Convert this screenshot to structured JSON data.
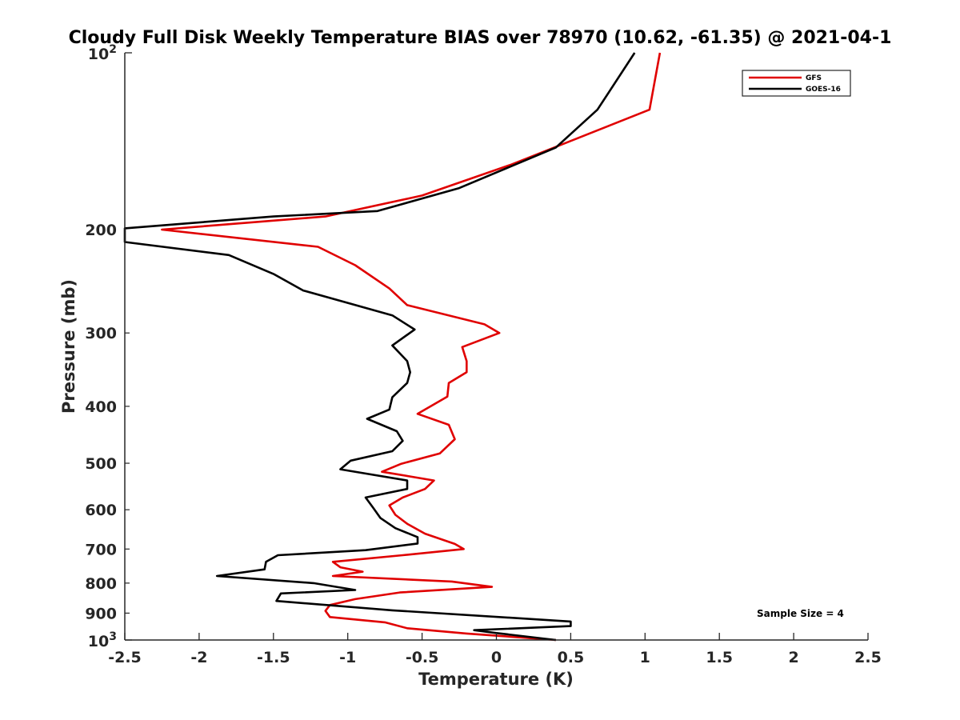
{
  "chart_data": {
    "type": "line",
    "title": "Cloudy Full Disk Weekly Temperature BIAS over 78970 (10.62, -61.35) @ 2021-04-1",
    "xlabel": "Temperature (K)",
    "ylabel": "Pressure (mb)",
    "xlim": [
      -2.5,
      2.5
    ],
    "ylim": [
      100,
      1000
    ],
    "y_scale": "log",
    "y_reversed": true,
    "x_ticks": [
      "-2.5",
      "-2",
      "-1.5",
      "-1",
      "-0.5",
      "0",
      "0.5",
      "1",
      "1.5",
      "2",
      "2.5"
    ],
    "y_ticks": [
      {
        "value": 100,
        "base": "10",
        "exp": "2"
      },
      {
        "value": 200,
        "label": "200"
      },
      {
        "value": 300,
        "label": "300"
      },
      {
        "value": 400,
        "label": "400"
      },
      {
        "value": 500,
        "label": "500"
      },
      {
        "value": 600,
        "label": "600"
      },
      {
        "value": 700,
        "label": "700"
      },
      {
        "value": 800,
        "label": "800"
      },
      {
        "value": 900,
        "label": "900"
      },
      {
        "value": 1000,
        "base": "10",
        "exp": "3"
      }
    ],
    "legend_position": "top-right",
    "annotation": "Sample Size = 4",
    "series": [
      {
        "name": "GFS",
        "color": "#e00000",
        "points": [
          [
            1.1,
            100
          ],
          [
            1.03,
            125
          ],
          [
            0.1,
            155
          ],
          [
            -0.5,
            175
          ],
          [
            -1.15,
            190
          ],
          [
            -2.25,
            200
          ],
          [
            -1.2,
            214
          ],
          [
            -0.95,
            230
          ],
          [
            -0.72,
            252
          ],
          [
            -0.6,
            269
          ],
          [
            -0.08,
            290
          ],
          [
            0.02,
            300
          ],
          [
            -0.23,
            317
          ],
          [
            -0.2,
            335
          ],
          [
            -0.2,
            350
          ],
          [
            -0.32,
            365
          ],
          [
            -0.33,
            385
          ],
          [
            -0.53,
            412
          ],
          [
            -0.32,
            430
          ],
          [
            -0.28,
            455
          ],
          [
            -0.38,
            481
          ],
          [
            -0.64,
            501
          ],
          [
            -0.77,
            517
          ],
          [
            -0.42,
            535
          ],
          [
            -0.48,
            553
          ],
          [
            -0.63,
            572
          ],
          [
            -0.72,
            590
          ],
          [
            -0.68,
            612
          ],
          [
            -0.6,
            634
          ],
          [
            -0.48,
            659
          ],
          [
            -0.28,
            686
          ],
          [
            -0.22,
            700
          ],
          [
            -0.63,
            717
          ],
          [
            -1.1,
            736
          ],
          [
            -1.05,
            752
          ],
          [
            -0.9,
            765
          ],
          [
            -1.1,
            778
          ],
          [
            -0.3,
            795
          ],
          [
            -0.03,
            812
          ],
          [
            -0.65,
            830
          ],
          [
            -0.95,
            852
          ],
          [
            -1.12,
            872
          ],
          [
            -1.15,
            892
          ],
          [
            -1.12,
            914
          ],
          [
            -0.75,
            933
          ],
          [
            -0.6,
            955
          ],
          [
            -0.2,
            975
          ],
          [
            0.4,
            1000
          ]
        ]
      },
      {
        "name": "GOES-16",
        "color": "#000000",
        "points": [
          [
            0.93,
            100
          ],
          [
            0.68,
            125
          ],
          [
            0.4,
            145
          ],
          [
            -0.25,
            170
          ],
          [
            -0.8,
            186
          ],
          [
            -1.5,
            190
          ],
          [
            -2.5,
            199
          ],
          [
            -2.5,
            210
          ],
          [
            -1.8,
            221
          ],
          [
            -1.5,
            238
          ],
          [
            -1.3,
            254
          ],
          [
            -0.7,
            280
          ],
          [
            -0.55,
            296
          ],
          [
            -0.7,
            315
          ],
          [
            -0.6,
            335
          ],
          [
            -0.58,
            350
          ],
          [
            -0.6,
            365
          ],
          [
            -0.7,
            386
          ],
          [
            -0.72,
            405
          ],
          [
            -0.87,
            420
          ],
          [
            -0.67,
            441
          ],
          [
            -0.63,
            458
          ],
          [
            -0.7,
            477
          ],
          [
            -0.98,
            495
          ],
          [
            -1.05,
            512
          ],
          [
            -0.6,
            535
          ],
          [
            -0.6,
            553
          ],
          [
            -0.88,
            572
          ],
          [
            -0.83,
            595
          ],
          [
            -0.78,
            620
          ],
          [
            -0.68,
            645
          ],
          [
            -0.53,
            668
          ],
          [
            -0.53,
            685
          ],
          [
            -0.88,
            703
          ],
          [
            -1.47,
            717
          ],
          [
            -1.55,
            736
          ],
          [
            -1.56,
            758
          ],
          [
            -1.88,
            778
          ],
          [
            -1.23,
            800
          ],
          [
            -0.95,
            822
          ],
          [
            -1.45,
            833
          ],
          [
            -1.48,
            858
          ],
          [
            -0.7,
            890
          ],
          [
            0.5,
            930
          ],
          [
            0.5,
            947
          ],
          [
            -0.15,
            962
          ],
          [
            0.0,
            973
          ],
          [
            0.4,
            1000
          ]
        ]
      }
    ]
  }
}
